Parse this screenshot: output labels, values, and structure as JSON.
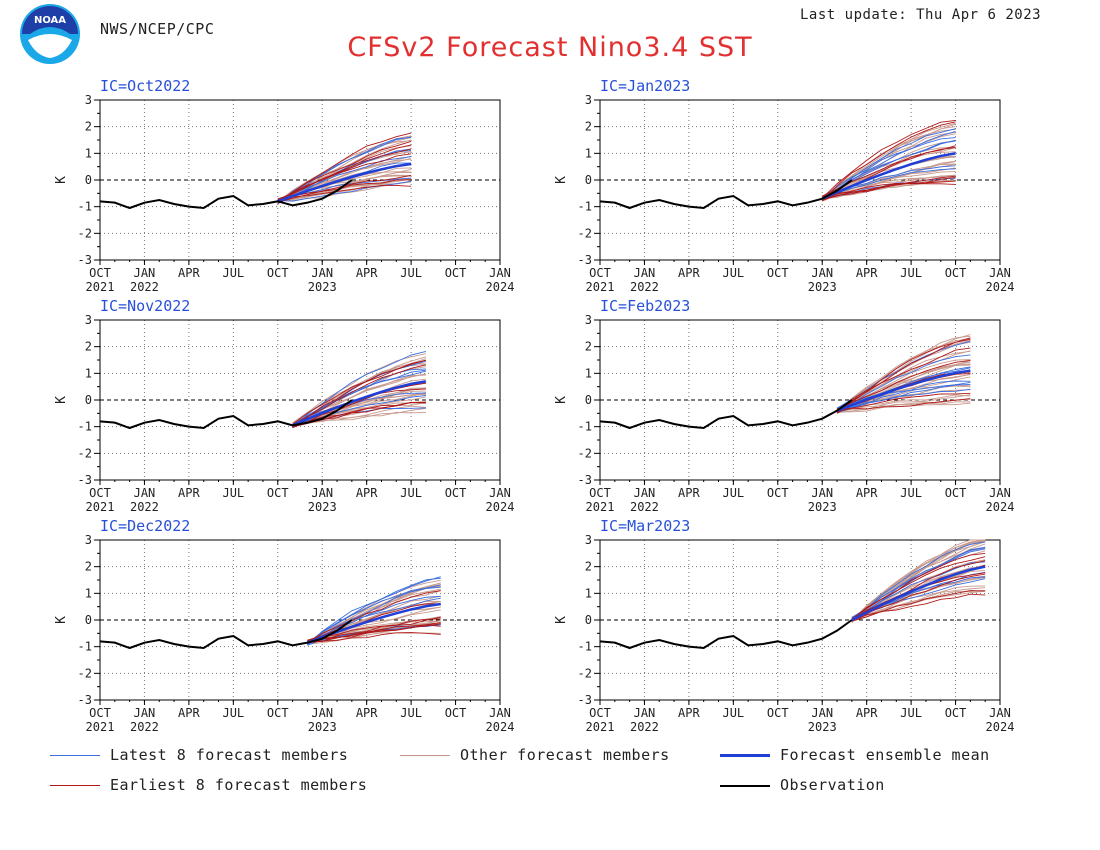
{
  "header": {
    "agency": "NWS/NCEP/CPC",
    "last_update": "Last update: Thu Apr 6 2023",
    "title": "CFSv2 Forecast Nino3.4 SST",
    "logo_text": "NOAA"
  },
  "colors": {
    "title": "#e23030",
    "panel_label": "#2850d8",
    "latest": "#3a6ee0",
    "other": "#c89a8e",
    "mean": "#1f3fd6",
    "earliest": "#b01818",
    "observation": "#000000"
  },
  "legend": {
    "latest": "Latest 8 forecast members",
    "other": "Other forecast members",
    "mean": "Forecast ensemble mean",
    "earliest": "Earliest 8 forecast members",
    "observation": "Observation"
  },
  "chart_data": {
    "type": "line",
    "ylabel": "K",
    "ylim": [
      -3,
      3
    ],
    "yticks": [
      "3",
      "2",
      "1",
      "0",
      "-1",
      "-2",
      "-3"
    ],
    "xticks": [
      {
        "month": "OCT",
        "year": "2021"
      },
      {
        "month": "JAN",
        "year": "2022"
      },
      {
        "month": "APR",
        "year": ""
      },
      {
        "month": "JUL",
        "year": ""
      },
      {
        "month": "OCT",
        "year": ""
      },
      {
        "month": "JAN",
        "year": "2023"
      },
      {
        "month": "APR",
        "year": ""
      },
      {
        "month": "JUL",
        "year": ""
      },
      {
        "month": "OCT",
        "year": ""
      },
      {
        "month": "JAN",
        "year": "2024"
      }
    ],
    "x_range": [
      "Oct 2021",
      "Jan 2024"
    ],
    "zero_line": "dashed",
    "grid": "dotted",
    "observation": {
      "months": [
        "2021-10",
        "2021-11",
        "2021-12",
        "2022-01",
        "2022-02",
        "2022-03",
        "2022-04",
        "2022-05",
        "2022-06",
        "2022-07",
        "2022-08",
        "2022-09",
        "2022-10",
        "2022-11",
        "2022-12",
        "2023-01",
        "2023-02",
        "2023-03"
      ],
      "values": [
        -0.8,
        -0.85,
        -1.05,
        -0.85,
        -0.75,
        -0.9,
        -1.0,
        -1.05,
        -0.7,
        -0.6,
        -0.95,
        -0.9,
        -0.8,
        -0.95,
        -0.85,
        -0.7,
        -0.4,
        0.0
      ]
    },
    "panels": [
      {
        "label": "IC=Oct2022",
        "ic": "2022-10",
        "lead_months": 9,
        "mean_end": 0.6,
        "spread": 1.0
      },
      {
        "label": "IC=Jan2023",
        "ic": "2023-01",
        "lead_months": 9,
        "mean_end": 1.0,
        "spread": 1.2
      },
      {
        "label": "IC=Nov2022",
        "ic": "2022-11",
        "lead_months": 9,
        "mean_end": 0.7,
        "spread": 1.1
      },
      {
        "label": "IC=Feb2023",
        "ic": "2023-02",
        "lead_months": 9,
        "mean_end": 1.1,
        "spread": 1.3
      },
      {
        "label": "IC=Dec2022",
        "ic": "2022-12",
        "lead_months": 9,
        "mean_end": 0.6,
        "spread": 1.1
      },
      {
        "label": "IC=Mar2023",
        "ic": "2023-03",
        "lead_months": 9,
        "mean_end": 2.0,
        "spread": 1.1
      }
    ]
  }
}
